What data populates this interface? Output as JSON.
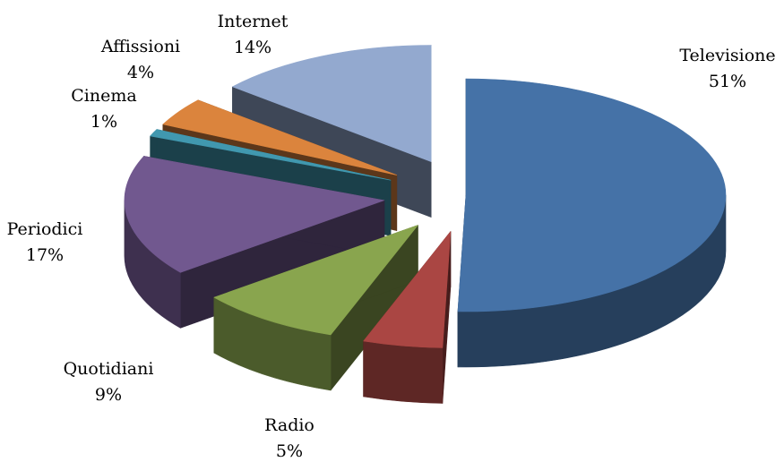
{
  "chart_data": {
    "type": "pie",
    "variant": "3d-exploded",
    "title": "",
    "legend": "none",
    "slices": [
      {
        "label": "Televisione",
        "value": 51,
        "display": "51%",
        "color": "#4572A7"
      },
      {
        "label": "Radio",
        "value": 5,
        "display": "5%",
        "color": "#AA4643"
      },
      {
        "label": "Quotidiani",
        "value": 9,
        "display": "9%",
        "color": "#89A54E"
      },
      {
        "label": "Periodici",
        "value": 17,
        "display": "17%",
        "color": "#71588F"
      },
      {
        "label": "Cinema",
        "value": 1,
        "display": "1%",
        "color": "#4198AF"
      },
      {
        "label": "Affissioni",
        "value": 4,
        "display": "4%",
        "color": "#DB843D"
      },
      {
        "label": "Internet",
        "value": 14,
        "display": "14%",
        "color": "#93A9CF"
      }
    ]
  }
}
